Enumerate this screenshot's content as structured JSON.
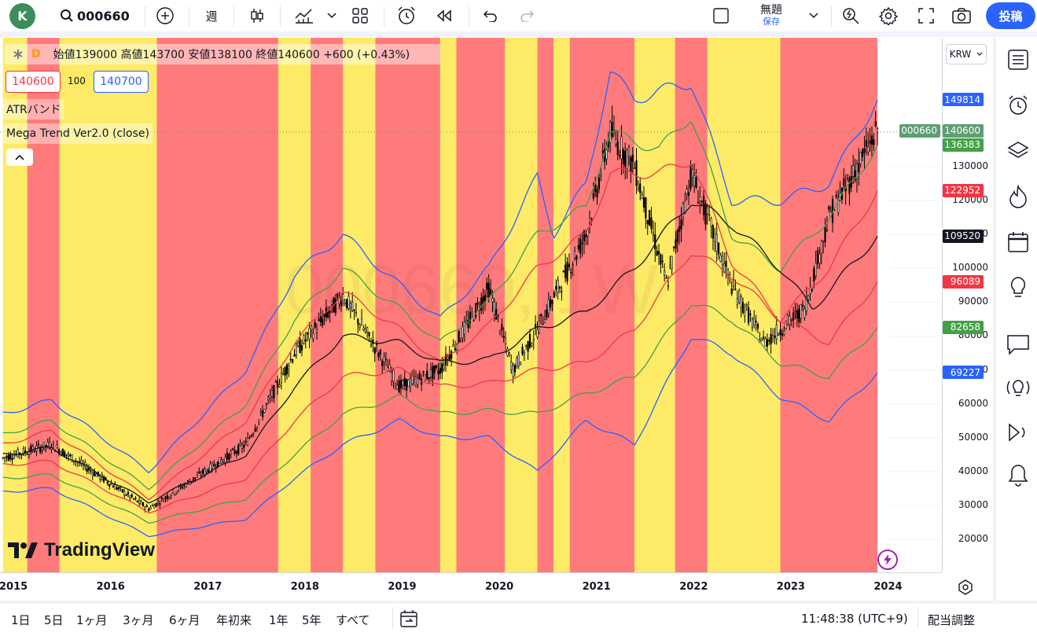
{
  "topbar": {
    "avatar_letter": "K",
    "symbol": "000660",
    "interval": "週",
    "layout_title": "無題",
    "layout_sub": "保存",
    "post_button": "投稿"
  },
  "legend": {
    "flags": "D",
    "ohlc": "始値139000 高値143700 安値138100 終値140600 +600 (+0.43%)",
    "sell_price": "140600",
    "spread": "100",
    "buy_price": "140700",
    "indicator1": "ATRバンド",
    "indicator2": "Mega Trend Ver2.0 (close)",
    "watermark": "000660, 1W"
  },
  "price_axis": {
    "currency": "KRW",
    "ticks": [
      "130000",
      "120000",
      "110000",
      "100000",
      "90000",
      "80000",
      "70000",
      "60000",
      "50000",
      "40000",
      "30000",
      "20000"
    ],
    "badges": [
      {
        "value": "149814",
        "color": "#2962ff"
      },
      {
        "symbol": "000660",
        "value": "140600",
        "color": "#5d9e73"
      },
      {
        "value": "136383",
        "color": "#43a047"
      },
      {
        "value": "122952",
        "color": "#f23645"
      },
      {
        "value": "109520",
        "color": "#131722"
      },
      {
        "value": "96089",
        "color": "#f23645"
      },
      {
        "value": "82658",
        "color": "#43a047"
      },
      {
        "value": "69227",
        "color": "#2962ff"
      }
    ]
  },
  "time_axis": {
    "years": [
      "2015",
      "2016",
      "2017",
      "2018",
      "2019",
      "2020",
      "2021",
      "2022",
      "2023",
      "2024"
    ]
  },
  "logo": "TradingView",
  "bottombar": {
    "ranges": [
      "1日",
      "5日",
      "1ヶ月",
      "3ヶ月",
      "6ヶ月",
      "年初来",
      "1年",
      "5年",
      "すべて"
    ],
    "clock": "11:48:38 (UTC+9)",
    "adjust": "配当調整"
  },
  "colors": {
    "bull_zone": "#fdeb67",
    "bear_zone": "#ff7b7b",
    "upper_band": "#2962ff",
    "mid_upper": "#43a047",
    "inner_upper": "#f23645",
    "center": "#131722"
  },
  "chart_data": {
    "type": "candlestick",
    "title": "000660",
    "xlabel": "",
    "ylabel": "",
    "ylim": [
      12000,
      163000
    ],
    "background_zones": [
      {
        "from": "2014-12",
        "to": "2015-03",
        "state": "bull"
      },
      {
        "from": "2015-03",
        "to": "2015-07",
        "state": "bear"
      },
      {
        "from": "2015-07",
        "to": "2016-07",
        "state": "bull"
      },
      {
        "from": "2016-07",
        "to": "2017-10",
        "state": "bear"
      },
      {
        "from": "2017-10",
        "to": "2018-02",
        "state": "bull"
      },
      {
        "from": "2018-02",
        "to": "2018-06",
        "state": "bear"
      },
      {
        "from": "2018-06",
        "to": "2018-10",
        "state": "bull"
      },
      {
        "from": "2018-10",
        "to": "2019-06",
        "state": "bear"
      },
      {
        "from": "2019-06",
        "to": "2019-08",
        "state": "bull"
      },
      {
        "from": "2019-08",
        "to": "2020-02",
        "state": "bear"
      },
      {
        "from": "2020-02",
        "to": "2020-06",
        "state": "bull"
      },
      {
        "from": "2020-06",
        "to": "2020-08",
        "state": "bear"
      },
      {
        "from": "2020-08",
        "to": "2020-10",
        "state": "bull"
      },
      {
        "from": "2020-10",
        "to": "2021-06",
        "state": "bear"
      },
      {
        "from": "2021-06",
        "to": "2021-11",
        "state": "bull"
      },
      {
        "from": "2021-11",
        "to": "2022-03",
        "state": "bear"
      },
      {
        "from": "2022-03",
        "to": "2022-12",
        "state": "bull"
      },
      {
        "from": "2022-12",
        "to": "2023-12",
        "state": "bear"
      }
    ],
    "series": [
      {
        "name": "upper_band",
        "points": [
          [
            "2014-12",
            57000
          ],
          [
            "2015-06",
            61000
          ],
          [
            "2016-06",
            40000
          ],
          [
            "2017-06",
            70000
          ],
          [
            "2017-12",
            98000
          ],
          [
            "2018-06",
            110000
          ],
          [
            "2019-01",
            95000
          ],
          [
            "2019-06",
            85000
          ],
          [
            "2019-12",
            100000
          ],
          [
            "2020-06",
            127000
          ],
          [
            "2020-08",
            110000
          ],
          [
            "2020-12",
            125000
          ],
          [
            "2021-03",
            158000
          ],
          [
            "2021-06",
            150000
          ],
          [
            "2022-01",
            155000
          ],
          [
            "2022-06",
            120000
          ],
          [
            "2022-12",
            120000
          ],
          [
            "2023-06",
            125000
          ],
          [
            "2023-12",
            149814
          ]
        ]
      },
      {
        "name": "mid_upper",
        "points": [
          [
            "2014-12",
            51000
          ],
          [
            "2015-06",
            55000
          ],
          [
            "2016-06",
            35000
          ],
          [
            "2017-06",
            60000
          ],
          [
            "2017-12",
            85000
          ],
          [
            "2018-06",
            100000
          ],
          [
            "2019-01",
            88000
          ],
          [
            "2019-06",
            78000
          ],
          [
            "2019-12",
            90000
          ],
          [
            "2020-06",
            110000
          ],
          [
            "2020-12",
            118000
          ],
          [
            "2021-03",
            140000
          ],
          [
            "2021-09",
            135000
          ],
          [
            "2022-01",
            145000
          ],
          [
            "2022-06",
            110000
          ],
          [
            "2022-12",
            100000
          ],
          [
            "2023-06",
            115000
          ],
          [
            "2023-12",
            136383
          ]
        ]
      },
      {
        "name": "inner_upper",
        "points": [
          [
            "2014-12",
            48000
          ],
          [
            "2015-06",
            52000
          ],
          [
            "2016-06",
            32000
          ],
          [
            "2017-06",
            55000
          ],
          [
            "2017-12",
            78000
          ],
          [
            "2018-06",
            93000
          ],
          [
            "2019-01",
            82000
          ],
          [
            "2019-06",
            72000
          ],
          [
            "2019-12",
            83000
          ],
          [
            "2020-06",
            100000
          ],
          [
            "2020-12",
            110000
          ],
          [
            "2021-03",
            128000
          ],
          [
            "2021-09",
            128000
          ],
          [
            "2022-01",
            132000
          ],
          [
            "2022-06",
            102000
          ],
          [
            "2022-12",
            85000
          ],
          [
            "2023-06",
            100000
          ],
          [
            "2023-12",
            122952
          ]
        ]
      },
      {
        "name": "center",
        "points": [
          [
            "2014-12",
            45000
          ],
          [
            "2015-06",
            47000
          ],
          [
            "2016-06",
            31000
          ],
          [
            "2017-06",
            45000
          ],
          [
            "2017-12",
            65000
          ],
          [
            "2018-06",
            80000
          ],
          [
            "2019-01",
            78000
          ],
          [
            "2019-06",
            72000
          ],
          [
            "2019-12",
            73000
          ],
          [
            "2020-06",
            82000
          ],
          [
            "2020-12",
            87000
          ],
          [
            "2021-06",
            100000
          ],
          [
            "2022-01",
            120000
          ],
          [
            "2022-06",
            113000
          ],
          [
            "2022-12",
            100000
          ],
          [
            "2023-04",
            88000
          ],
          [
            "2023-12",
            109520
          ]
        ]
      },
      {
        "name": "inner_lower",
        "points": [
          [
            "2014-12",
            42000
          ],
          [
            "2015-06",
            43000
          ],
          [
            "2016-06",
            28000
          ],
          [
            "2017-06",
            38000
          ],
          [
            "2017-12",
            55000
          ],
          [
            "2018-06",
            68000
          ],
          [
            "2019-01",
            70000
          ],
          [
            "2019-06",
            65000
          ],
          [
            "2019-12",
            66000
          ],
          [
            "2020-06",
            70000
          ],
          [
            "2020-12",
            72000
          ],
          [
            "2021-06",
            82000
          ],
          [
            "2022-01",
            105000
          ],
          [
            "2022-06",
            98000
          ],
          [
            "2022-12",
            85000
          ],
          [
            "2023-06",
            78000
          ],
          [
            "2023-12",
            96089
          ]
        ]
      },
      {
        "name": "mid_lower",
        "points": [
          [
            "2014-12",
            38000
          ],
          [
            "2015-06",
            39000
          ],
          [
            "2016-06",
            25000
          ],
          [
            "2017-06",
            32000
          ],
          [
            "2017-12",
            45000
          ],
          [
            "2018-06",
            57000
          ],
          [
            "2019-01",
            62000
          ],
          [
            "2019-06",
            57000
          ],
          [
            "2019-12",
            58000
          ],
          [
            "2020-06",
            57000
          ],
          [
            "2020-12",
            63000
          ],
          [
            "2021-06",
            68000
          ],
          [
            "2022-01",
            90000
          ],
          [
            "2022-06",
            85000
          ],
          [
            "2022-12",
            72000
          ],
          [
            "2023-06",
            68000
          ],
          [
            "2023-12",
            82658
          ]
        ]
      },
      {
        "name": "lower_band",
        "points": [
          [
            "2014-12",
            34000
          ],
          [
            "2015-06",
            35000
          ],
          [
            "2016-06",
            21000
          ],
          [
            "2017-06",
            26000
          ],
          [
            "2017-12",
            38000
          ],
          [
            "2018-06",
            48000
          ],
          [
            "2019-01",
            55000
          ],
          [
            "2019-06",
            50000
          ],
          [
            "2019-12",
            50000
          ],
          [
            "2020-06",
            40000
          ],
          [
            "2020-12",
            55000
          ],
          [
            "2021-06",
            48000
          ],
          [
            "2022-01",
            80000
          ],
          [
            "2022-06",
            75000
          ],
          [
            "2022-12",
            62000
          ],
          [
            "2023-06",
            55000
          ],
          [
            "2023-12",
            69227
          ]
        ]
      },
      {
        "name": "price",
        "points": [
          [
            "2014-12",
            44000
          ],
          [
            "2015-06",
            48000
          ],
          [
            "2016-06",
            29000
          ],
          [
            "2017-06",
            48000
          ],
          [
            "2017-12",
            75000
          ],
          [
            "2018-06",
            92000
          ],
          [
            "2019-01",
            65000
          ],
          [
            "2019-06",
            70000
          ],
          [
            "2019-12",
            94000
          ],
          [
            "2020-03",
            70000
          ],
          [
            "2020-06",
            82000
          ],
          [
            "2020-12",
            110000
          ],
          [
            "2021-03",
            140000
          ],
          [
            "2021-06",
            130000
          ],
          [
            "2021-10",
            95000
          ],
          [
            "2022-01",
            128000
          ],
          [
            "2022-06",
            95000
          ],
          [
            "2022-10",
            78000
          ],
          [
            "2023-03",
            88000
          ],
          [
            "2023-06",
            115000
          ],
          [
            "2023-12",
            140600
          ]
        ]
      }
    ]
  }
}
